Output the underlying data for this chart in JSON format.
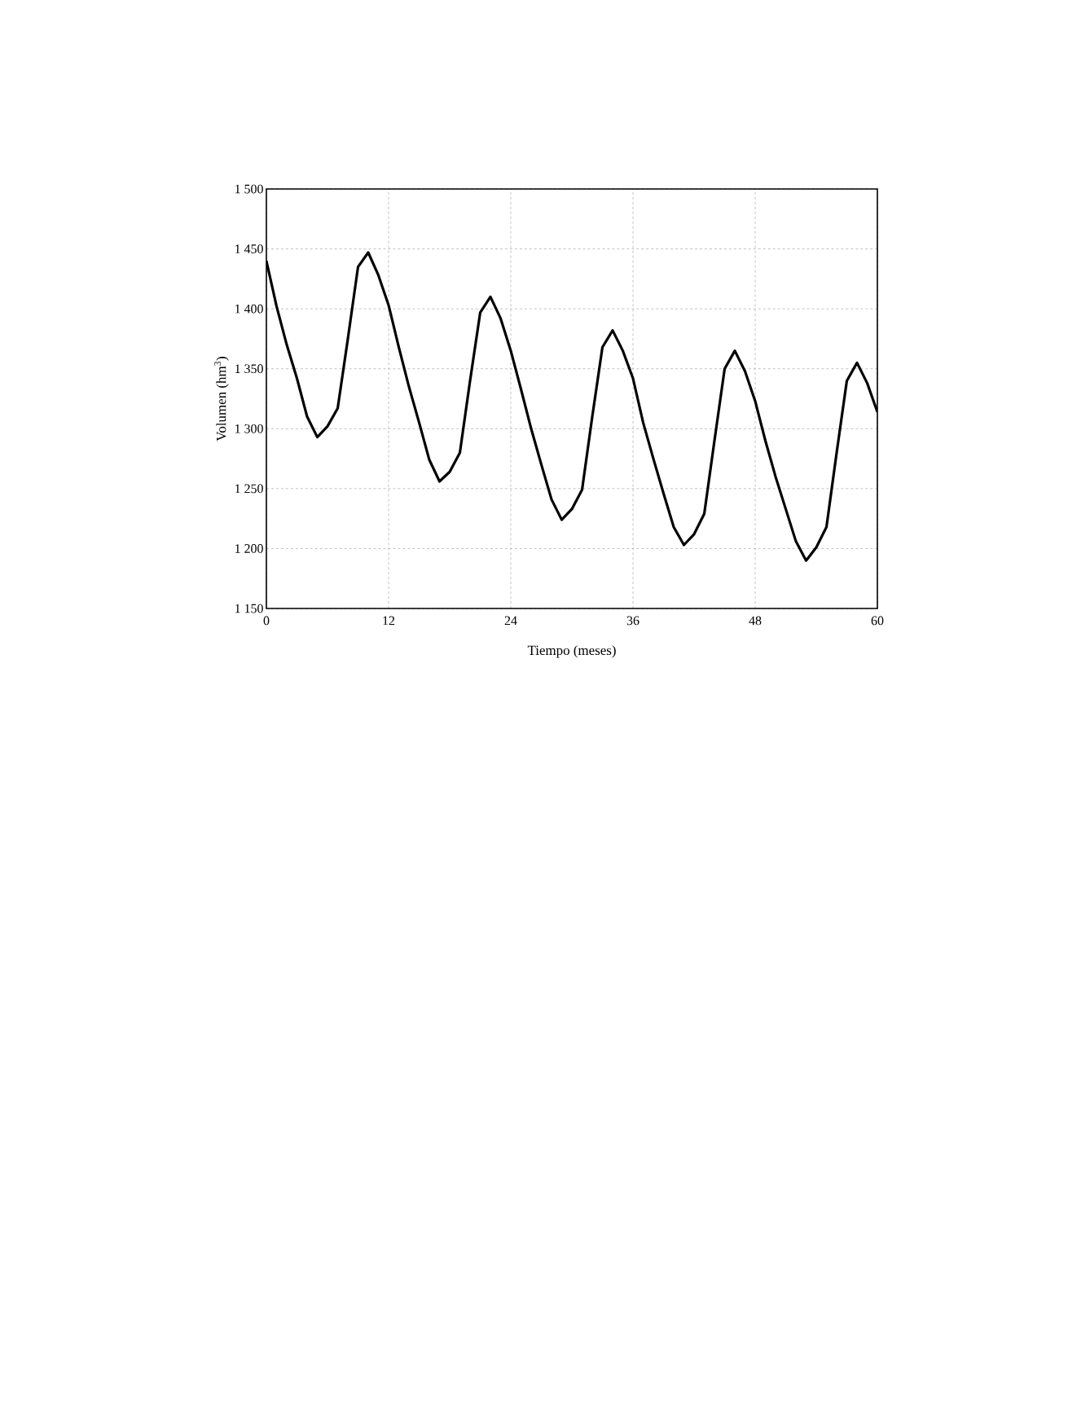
{
  "chart_data": {
    "type": "line",
    "xlabel": "Tiempo (meses)",
    "ylabel": "Volumen (hm$^{3}$)",
    "x": [
      0,
      1,
      2,
      3,
      4,
      5,
      6,
      7,
      8,
      9,
      10,
      11,
      12,
      13,
      14,
      15,
      16,
      17,
      18,
      19,
      20,
      21,
      22,
      23,
      24,
      25,
      26,
      27,
      28,
      29,
      30,
      31,
      32,
      33,
      34,
      35,
      36,
      37,
      38,
      39,
      40,
      41,
      42,
      43,
      44,
      45,
      46,
      47,
      48,
      49,
      50,
      51,
      52,
      53,
      54,
      55,
      56,
      57,
      58,
      59,
      60
    ],
    "series": [
      {
        "color": "#000000",
        "values": [
          1440,
          1402,
          1370,
          1342,
          1310,
          1293,
          1302,
          1317,
          1375,
          1435,
          1447,
          1428,
          1403,
          1368,
          1335,
          1305,
          1274,
          1256,
          1264,
          1280,
          1340,
          1397,
          1410,
          1392,
          1365,
          1333,
          1300,
          1270,
          1241,
          1224,
          1233,
          1249,
          1310,
          1368,
          1382,
          1365,
          1342,
          1305,
          1275,
          1246,
          1218,
          1203,
          1212,
          1229,
          1290,
          1350,
          1365,
          1348,
          1323,
          1290,
          1260,
          1233,
          1206,
          1190,
          1201,
          1218,
          1280,
          1340,
          1355,
          1338,
          1314
        ]
      }
    ],
    "xlim": [
      0,
      60
    ],
    "xticks": [
      0,
      12,
      24,
      36,
      48,
      60
    ],
    "ylim": [
      1150,
      1500
    ],
    "yticks": [
      {
        "value": 1150,
        "label": "1 150"
      },
      {
        "value": 1200,
        "label": "1 200"
      },
      {
        "value": 1250,
        "label": "1 250"
      },
      {
        "value": 1300,
        "label": "1 300"
      },
      {
        "value": 1350,
        "label": "1 350"
      },
      {
        "value": 1400,
        "label": "1 400"
      },
      {
        "value": 1450,
        "label": "1 450"
      },
      {
        "value": 1500,
        "label": "1 500"
      }
    ],
    "grid": true,
    "marker": "none",
    "line_style": "solid"
  }
}
